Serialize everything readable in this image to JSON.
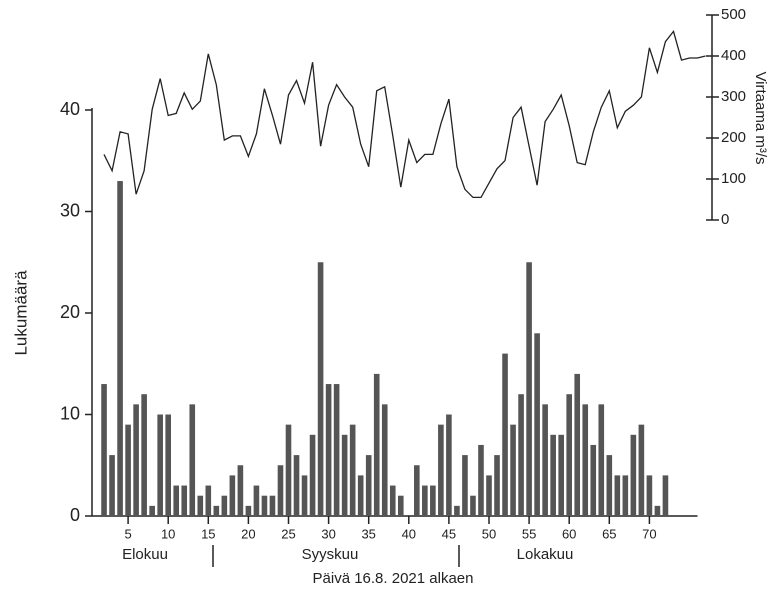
{
  "chart_data": {
    "type": "bar",
    "ylabel": "Lukumäärä",
    "xlabel": "Päivä 16.8. 2021 alkaen",
    "y2label": "Virtaama m³/s",
    "month_labels": [
      "Elokuu",
      "Syyskuu",
      "Lokakuu"
    ],
    "xlim": [
      0,
      76
    ],
    "xticks": [
      5,
      10,
      15,
      20,
      25,
      30,
      35,
      40,
      45,
      50,
      55,
      60,
      65,
      70
    ],
    "ylim": [
      0,
      40
    ],
    "yticks": [
      0,
      10,
      20,
      30,
      40
    ],
    "y2lim": [
      0,
      500
    ],
    "y2ticks": [
      0,
      100,
      200,
      300,
      400,
      500
    ],
    "bars": {
      "color": "#555555",
      "x": [
        2,
        3,
        4,
        5,
        6,
        7,
        8,
        9,
        10,
        11,
        12,
        13,
        14,
        15,
        16,
        17,
        18,
        19,
        20,
        21,
        22,
        23,
        24,
        25,
        26,
        27,
        28,
        29,
        30,
        31,
        32,
        33,
        34,
        35,
        36,
        37,
        38,
        39,
        40,
        41,
        42,
        43,
        44,
        45,
        46,
        47,
        48,
        49,
        50,
        51,
        52,
        53,
        54,
        55,
        56,
        57,
        58,
        59,
        60,
        61,
        62,
        63,
        64,
        65,
        66,
        67,
        68,
        69,
        70,
        71,
        72
      ],
      "values": [
        13,
        6,
        33,
        9,
        11,
        12,
        1,
        10,
        10,
        3,
        3,
        11,
        2,
        3,
        1,
        2,
        4,
        5,
        1,
        3,
        2,
        2,
        5,
        9,
        6,
        4,
        8,
        25,
        13,
        13,
        8,
        9,
        4,
        6,
        14,
        11,
        3,
        2,
        0,
        5,
        3,
        3,
        9,
        10,
        1,
        6,
        2,
        7,
        4,
        6,
        16,
        9,
        12,
        25,
        18,
        11,
        8,
        8,
        12,
        14,
        11,
        7,
        11,
        6,
        4,
        4,
        8,
        9,
        4,
        1,
        4
      ]
    },
    "line": {
      "color": "#222222",
      "axis": "y2",
      "x": [
        2,
        3,
        4,
        5,
        6,
        7,
        8,
        9,
        10,
        11,
        12,
        13,
        14,
        15,
        16,
        17,
        18,
        19,
        20,
        21,
        22,
        23,
        24,
        25,
        26,
        27,
        28,
        29,
        30,
        31,
        32,
        33,
        34,
        35,
        36,
        37,
        38,
        39,
        40,
        41,
        42,
        43,
        44,
        45,
        46,
        47,
        48,
        49,
        50,
        51,
        52,
        53,
        54,
        55,
        56,
        57,
        58,
        59,
        60,
        61,
        62,
        63,
        64,
        65,
        66,
        67,
        68,
        69,
        70,
        71,
        72,
        73,
        74,
        75,
        76,
        77
      ],
      "values": [
        160,
        120,
        215,
        210,
        63,
        120,
        270,
        345,
        255,
        260,
        310,
        270,
        290,
        405,
        330,
        195,
        205,
        205,
        155,
        210,
        320,
        255,
        185,
        305,
        340,
        285,
        385,
        180,
        280,
        330,
        300,
        275,
        185,
        130,
        315,
        325,
        205,
        80,
        195,
        140,
        160,
        160,
        235,
        295,
        130,
        75,
        55,
        55,
        90,
        125,
        145,
        250,
        275,
        180,
        85,
        240,
        270,
        305,
        230,
        140,
        135,
        215,
        275,
        315,
        225,
        265,
        280,
        300,
        420,
        360,
        435,
        460,
        390,
        395,
        395,
        400
      ]
    }
  }
}
